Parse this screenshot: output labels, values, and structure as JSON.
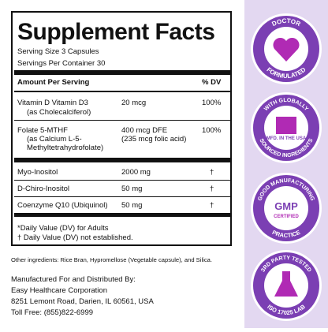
{
  "facts": {
    "title": "Supplement Facts",
    "serving_size": "Serving Size 3 Capsules",
    "servings_per_container": "Servings Per Container 30",
    "header": [
      "Amount Per Serving",
      "% DV"
    ],
    "rows": [
      {
        "name": [
          "Vitamin D Vitamin D3",
          "(as Cholecalciferol)"
        ],
        "amount": [
          "20 mcg"
        ],
        "dv": "100%"
      },
      {
        "name": [
          "Folate 5-MTHF",
          "(as Calcium L-5-",
          "Methyltetrahydrofolate)"
        ],
        "amount": [
          "400 mcg DFE",
          "(235 mcg folic acid)"
        ],
        "dv": "100%"
      },
      {
        "name": [
          "Myo-Inositol"
        ],
        "amount": [
          "2000 mg"
        ],
        "dv": "†"
      },
      {
        "name": [
          "D-Chiro-Inositol"
        ],
        "amount": [
          "50 mg"
        ],
        "dv": "†"
      },
      {
        "name": [
          "Coenzyme Q10 (Ubiquinol)"
        ],
        "amount": [
          "50 mg"
        ],
        "dv": "†"
      }
    ],
    "footnotes": [
      "*Daily Value (DV) for Adults",
      "† Daily Value (DV) not established."
    ]
  },
  "other_ingredients": "Other ingredients: Rice Bran, Hypromellose (Vegetable capsule), and Silica.",
  "manufacturer": [
    "Manufactured For and Distributed By:",
    "Easy Healthcare Corporation",
    "8251 Lemont Road, Darien, IL 60561, USA",
    "Toll Free: (855)822-6999"
  ],
  "badges": [
    {
      "top": "DOCTOR",
      "bottom": "FORMULATED"
    },
    {
      "top": "WITH GLOBALLY",
      "bottom": "SOURCED INGREDIENTS",
      "center": "MFD. IN THE USA"
    },
    {
      "top": "GOOD MANUFACTURING",
      "bottom": "PRACTICE",
      "center": "GMP",
      "sub": "CERTIFIED"
    },
    {
      "top": "3RD PARTY TESTED",
      "bottom": "ISO 17025 LAB"
    }
  ]
}
